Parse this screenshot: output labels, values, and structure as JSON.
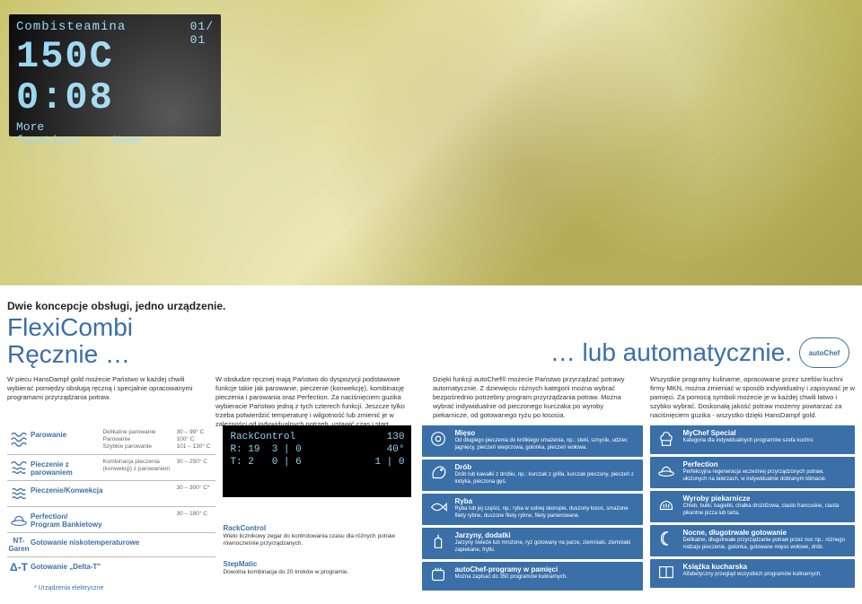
{
  "colors": {
    "accent": "#3a6fa8",
    "display_bg": "#000000",
    "display_fg": "#8fd3f0",
    "text": "#333333",
    "hero_gradient": [
      "#c9c46a",
      "#d8d28a",
      "#ece7b4",
      "#bfba62",
      "#a9a14c"
    ]
  },
  "oven_display": {
    "mode": "Combisteamina",
    "counter": "01/\n01",
    "temp_time": "150C 0:08",
    "more": "More\nfunctions",
    "home": "Home"
  },
  "header": {
    "subtitle": "Dwie koncepcje obsługi, jedno urządzenie.",
    "title_left": "FlexiCombi\nRęcznie …",
    "title_right": "… lub automatycznie.",
    "logo_text": "autoChef"
  },
  "intro_paragraphs": [
    "W piecu HansDampf gold możecie Państwo w każdej chwili wybierać pomiędzy obsługą ręczną i specjalnie opracowanymi programami przyrządzania potraw.",
    "W obsłudze ręcznej mają Państwo do dyspozycji podstawowe funkcje takie jak parowanie, pieczenie (konwekcję), kombinację pieczenia i parowania oraz Perfection. Za naciśnięciem guzika wybieracie Państwo jedną z tych czterech funkcji. Jeszcze tylko trzeba potwierdzić temperaturę i wilgotność lub zmienić je w zależności od indywidualnych potrzeb, ustawić czas i start.",
    "Dzięki funkcji autoChef® możecie Państwo przyrządzać potrawy automatycznie. Z dziewięciu różnych kategorii można wybrać bezpośrednio potrzebny program przyrządzania potraw. Można wybrać indywidualnie od pieczonego kurczaka po wyroby piekarnicze, od gotowanego ryżu po łososia.",
    "Wszystkie programy kulinarne, opracowane przez szefów kuchni firmy MKN, można zmieniać w sposób indywidualny i zapisywać je w pamięci. Za pomocą symboli możecie je w każdej chwili łatwo i szybko wybrać. Doskonałą jakość potraw możemy powtarzać za naciśnięciem guzika - wszystko dzięki HansDampf gold."
  ],
  "modes": [
    {
      "icon": "steam",
      "label": "Parowanie",
      "details": [
        {
          "n": "Delikatne parowanie",
          "t": "30 – 99° C"
        },
        {
          "n": "Parowanie",
          "t": "100° C"
        },
        {
          "n": "Szybkie parowanie",
          "t": "101 – 130° C"
        }
      ]
    },
    {
      "icon": "combi",
      "label": "Pieczenie z parowaniem",
      "details": [
        {
          "n": "Kombinacja pieczenia (konwekcji) z parowaniem",
          "t": "30 – 250° C"
        }
      ]
    },
    {
      "icon": "convect",
      "label": "Pieczenie/Konwekcja",
      "details": [
        {
          "n": "",
          "t": "30 – 300° C*"
        }
      ]
    },
    {
      "icon": "perfection",
      "label": "Perfection/\nProgram Bankietowy",
      "details": [
        {
          "n": "",
          "t": "30 – 180° C"
        }
      ]
    },
    {
      "icon": "nt",
      "label": "Gotowanie niskotemperaturowe",
      "details": []
    },
    {
      "icon": "dt",
      "label": "Gotowanie „Delta-T\"",
      "details": []
    }
  ],
  "modes_footnote": "* Urządzenia elektryczne",
  "rack_display": {
    "title_line": "RackControl",
    "ct": "130",
    "rows": [
      {
        "r": "R: 19",
        "v": "3 | 0",
        "t": "40°"
      },
      {
        "r": "T: 2",
        "v": "0 | 6",
        "t": "1 | 0"
      }
    ]
  },
  "rc_block": {
    "title": "RackControl",
    "desc": "Wielo licznikowy zegar do kontrolowania czasu dla różnych potraw równocześnie przyrządzanych."
  },
  "sm_block": {
    "title": "StepMatic",
    "desc": "Dowolna kombinacja do 20 kroków w programie."
  },
  "cards_col3": [
    {
      "icon": "meat",
      "title": "Mięso",
      "desc": "Od długiego pieczenia do krótkiego smażenia, np.: steki, sznycle, udziec jagnięcy, pieczeń wieprzowa, golonka, pieczeń wołowa."
    },
    {
      "icon": "poultry",
      "title": "Drób",
      "desc": "Drób lub kawałki z drobiu, np.: kurczak z grilla, kurczak pieczony, pieczeń z indyka, pieczona gęś."
    },
    {
      "icon": "fish",
      "title": "Ryba",
      "desc": "Ryba lub jej części, np.: ryba w solnej skorupie, duszony łosoś, smażone filety rybne, duszone filety rybne, filety panierowane."
    },
    {
      "icon": "veg",
      "title": "Jarzyny, dodatki",
      "desc": "Jarzyny świeże lub mrożone, ryż gotowany na parze, ziemniaki, ziemniaki zapiekane, frytki."
    },
    {
      "icon": "memory",
      "title": "autoChef-programy w pamięci",
      "desc": "Można zapisać do 350 programów kulinarnych."
    }
  ],
  "cards_col4": [
    {
      "icon": "chef",
      "title": "MyChef Special",
      "desc": "Kategoria dla indywidualnych programów szefa kuchni."
    },
    {
      "icon": "plate",
      "title": "Perfection",
      "desc": "Perfekcyjna regeneracja wcześniej przyrządzonych potraw, ułożonych na talerzach, w indywidualnie dobranym klimacie."
    },
    {
      "icon": "bread",
      "title": "Wyroby piekarnicze",
      "desc": "Chleb, bułki, bagietki, chałka drożdżowa, ciasto francuskie, ciasta pikantne pizza lub tarta."
    },
    {
      "icon": "moon",
      "title": "Nocne, długotrwałe gotowanie",
      "desc": "Delikatne, długotrwałe przyrządzanie potraw przez noc np.: różnego rodzaju pieczenie, golonka, gotowane mięso wołowe, drób."
    },
    {
      "icon": "book",
      "title": "Książka kucharska",
      "desc": "Alfabetyczny przegląd wszystkich programów kulinarnych."
    }
  ]
}
